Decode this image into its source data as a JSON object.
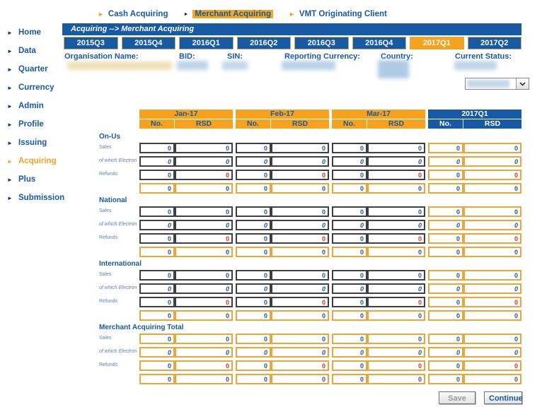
{
  "top_nav": {
    "items": [
      {
        "label": "Cash Acquiring",
        "highlighted": false
      },
      {
        "label": "Merchant Acquiring",
        "highlighted": true
      },
      {
        "label": "VMT Originating Client",
        "highlighted": false
      }
    ]
  },
  "sidebar": {
    "items": [
      {
        "label": "Home",
        "active": false
      },
      {
        "label": "Data",
        "active": false
      },
      {
        "label": "Quarter",
        "active": false
      },
      {
        "label": "Currency",
        "active": false
      },
      {
        "label": "Admin",
        "active": false
      },
      {
        "label": "Profile",
        "active": false
      },
      {
        "label": "Issuing",
        "active": false
      },
      {
        "label": "Acquiring",
        "active": true
      },
      {
        "label": "Plus",
        "active": false
      },
      {
        "label": "Submission",
        "active": false
      }
    ]
  },
  "breadcrumb": {
    "text": "Acquiring --> Merchant Acquiring"
  },
  "quarter_tabs": {
    "items": [
      {
        "label": "2015Q3",
        "active": false
      },
      {
        "label": "2015Q4",
        "active": false
      },
      {
        "label": "2016Q1",
        "active": false
      },
      {
        "label": "2016Q2",
        "active": false
      },
      {
        "label": "2016Q3",
        "active": false
      },
      {
        "label": "2016Q4",
        "active": false
      },
      {
        "label": "2017Q1",
        "active": true
      },
      {
        "label": "2017Q2",
        "active": false
      }
    ]
  },
  "org_info": {
    "fields": [
      {
        "label": "Organisation Name:",
        "value_redacted": true
      },
      {
        "label": "BID:",
        "value_redacted": true
      },
      {
        "label": "SIN:",
        "value_redacted": true
      },
      {
        "label": "Reporting Currency:",
        "value_redacted": true
      },
      {
        "label": "Country:",
        "value_redacted": true
      },
      {
        "label": "Current Status:",
        "value_redacted": true
      }
    ]
  },
  "status_dropdown": {
    "selected": ""
  },
  "table": {
    "column_groups": [
      {
        "label": "Jan-17",
        "type": "month"
      },
      {
        "label": "Feb-17",
        "type": "month"
      },
      {
        "label": "Mar-17",
        "type": "month"
      },
      {
        "label": "2017Q1",
        "type": "quarter"
      }
    ],
    "sub_columns": [
      "No.",
      "RSD"
    ],
    "groups": [
      {
        "name": "On-Us",
        "readonly": false,
        "rows": [
          {
            "label": "Sales",
            "italic": false,
            "refund": false,
            "total": false,
            "values": [
              "0",
              "0",
              "0",
              "0",
              "0",
              "0",
              "0",
              "0"
            ]
          },
          {
            "label": "of which Electron",
            "italic": true,
            "refund": false,
            "total": false,
            "values": [
              "0",
              "0",
              "0",
              "0",
              "0",
              "0",
              "0",
              "0"
            ]
          },
          {
            "label": "Refunds",
            "italic": false,
            "refund": true,
            "total": false,
            "values": [
              "0",
              "0",
              "0",
              "0",
              "0",
              "0",
              "0",
              "0"
            ]
          },
          {
            "label": "",
            "italic": false,
            "refund": false,
            "total": true,
            "values": [
              "0",
              "0",
              "0",
              "0",
              "0",
              "0",
              "0",
              "0"
            ]
          }
        ]
      },
      {
        "name": "National",
        "readonly": false,
        "rows": [
          {
            "label": "Sales",
            "italic": false,
            "refund": false,
            "total": false,
            "values": [
              "0",
              "0",
              "0",
              "0",
              "0",
              "0",
              "0",
              "0"
            ]
          },
          {
            "label": "of which Electron",
            "italic": true,
            "refund": false,
            "total": false,
            "values": [
              "0",
              "0",
              "0",
              "0",
              "0",
              "0",
              "0",
              "0"
            ]
          },
          {
            "label": "Refunds",
            "italic": false,
            "refund": true,
            "total": false,
            "values": [
              "0",
              "0",
              "0",
              "0",
              "0",
              "0",
              "0",
              "0"
            ]
          },
          {
            "label": "",
            "italic": false,
            "refund": false,
            "total": true,
            "values": [
              "0",
              "0",
              "0",
              "0",
              "0",
              "0",
              "0",
              "0"
            ]
          }
        ]
      },
      {
        "name": "International",
        "readonly": false,
        "rows": [
          {
            "label": "Sales",
            "italic": false,
            "refund": false,
            "total": false,
            "values": [
              "0",
              "0",
              "0",
              "0",
              "0",
              "0",
              "0",
              "0"
            ]
          },
          {
            "label": "of which Electron",
            "italic": true,
            "refund": false,
            "total": false,
            "values": [
              "0",
              "0",
              "0",
              "0",
              "0",
              "0",
              "0",
              "0"
            ]
          },
          {
            "label": "Refunds",
            "italic": false,
            "refund": true,
            "total": false,
            "values": [
              "0",
              "0",
              "0",
              "0",
              "0",
              "0",
              "0",
              "0"
            ]
          },
          {
            "label": "",
            "italic": false,
            "refund": false,
            "total": true,
            "values": [
              "0",
              "0",
              "0",
              "0",
              "0",
              "0",
              "0",
              "0"
            ]
          }
        ]
      },
      {
        "name": "Merchant Acquiring Total",
        "readonly": true,
        "rows": [
          {
            "label": "Sales",
            "italic": false,
            "refund": false,
            "total": false,
            "values": [
              "0",
              "0",
              "0",
              "0",
              "0",
              "0",
              "0",
              "0"
            ]
          },
          {
            "label": "of which Electron",
            "italic": true,
            "refund": false,
            "total": false,
            "values": [
              "0",
              "0",
              "0",
              "0",
              "0",
              "0",
              "0",
              "0"
            ]
          },
          {
            "label": "Refunds",
            "italic": false,
            "refund": true,
            "total": false,
            "values": [
              "0",
              "0",
              "0",
              "0",
              "0",
              "0",
              "0",
              "0"
            ]
          },
          {
            "label": "",
            "italic": false,
            "refund": false,
            "total": true,
            "values": [
              "0",
              "0",
              "0",
              "0",
              "0",
              "0",
              "0",
              "0"
            ]
          }
        ]
      }
    ]
  },
  "buttons": {
    "save": {
      "label": "Save",
      "enabled": false
    },
    "continue": {
      "label": "Continue",
      "enabled": true
    }
  },
  "colors": {
    "blue": "#1659A5",
    "orange": "#F7A11E",
    "active_tab": "#F5A31C",
    "red": "#D8342C"
  }
}
